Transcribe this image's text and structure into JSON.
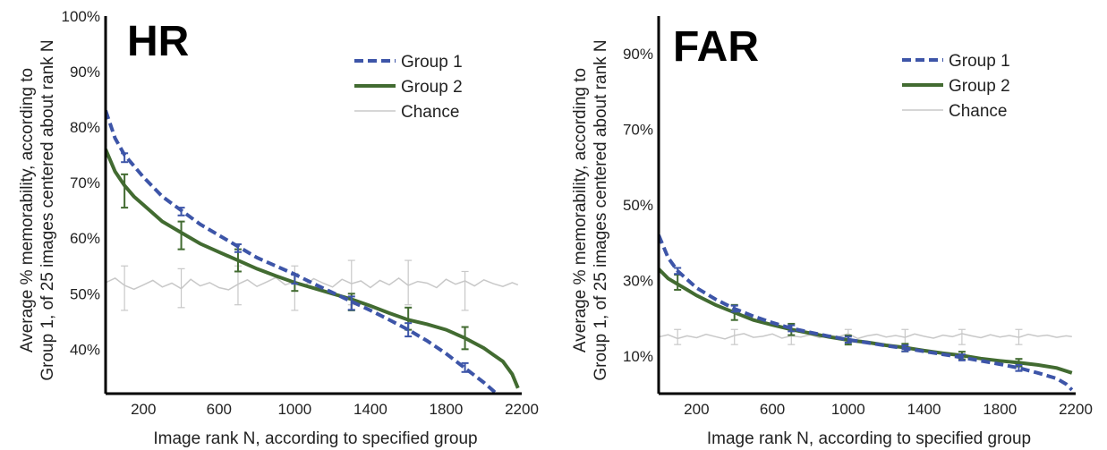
{
  "chart_data": [
    {
      "type": "line",
      "title": "HR",
      "xlabel": "Image rank N, according to specified group",
      "ylabel_line1": "Average % memorability, according to",
      "ylabel_line2": "Group 1, of 25 images centered about rank N",
      "xlim": [
        0,
        2200
      ],
      "ylim": [
        32,
        100
      ],
      "x_ticks": [
        200,
        600,
        1000,
        1400,
        1800,
        2200
      ],
      "x_tick_labels": [
        "200",
        "600",
        "1000",
        "1400",
        "1800",
        "2200"
      ],
      "y_ticks": [
        40,
        50,
        60,
        70,
        80,
        90,
        100
      ],
      "y_tick_labels": [
        "40%",
        "50%",
        "60%",
        "70%",
        "80%",
        "90%",
        "100%"
      ],
      "legend_position": "top-right",
      "series": [
        {
          "name": "Group 1",
          "style": "dashed",
          "color": "#3d55a8",
          "x": [
            0,
            50,
            100,
            200,
            300,
            400,
            500,
            600,
            700,
            800,
            900,
            1000,
            1100,
            1200,
            1300,
            1400,
            1500,
            1600,
            1700,
            1800,
            1900,
            2000,
            2050,
            2080
          ],
          "y": [
            83,
            78,
            75,
            71,
            67.5,
            65,
            62.5,
            60.5,
            58.5,
            56.5,
            55,
            53.5,
            51.8,
            50.2,
            48.6,
            47,
            45.3,
            43.5,
            41.5,
            39.2,
            36.6,
            34,
            32.5,
            31.5
          ],
          "error_bars": [
            {
              "x": 100,
              "y": 74.5,
              "err": 0.8
            },
            {
              "x": 400,
              "y": 64.8,
              "err": 0.7
            },
            {
              "x": 700,
              "y": 58.2,
              "err": 0.7
            },
            {
              "x": 1000,
              "y": 52.6,
              "err": 0.8
            },
            {
              "x": 1300,
              "y": 48.3,
              "err": 1.2
            },
            {
              "x": 1600,
              "y": 43.5,
              "err": 1.2
            },
            {
              "x": 1900,
              "y": 36.7,
              "err": 0.8
            }
          ]
        },
        {
          "name": "Group 2",
          "style": "solid",
          "color": "#426b31",
          "x": [
            0,
            50,
            100,
            150,
            200,
            300,
            400,
            500,
            600,
            700,
            800,
            900,
            1000,
            1100,
            1200,
            1300,
            1400,
            1500,
            1600,
            1700,
            1800,
            1900,
            2000,
            2050,
            2100,
            2150,
            2180
          ],
          "y": [
            76,
            72,
            69.5,
            67.5,
            66,
            63,
            61,
            59,
            57.5,
            56,
            54.5,
            53.2,
            52,
            51,
            50,
            49,
            47.8,
            46.5,
            45.3,
            44.5,
            43.5,
            42,
            40.2,
            39,
            37.8,
            35.5,
            33
          ],
          "error_bars": [
            {
              "x": 100,
              "y": 68.5,
              "err": 3
            },
            {
              "x": 400,
              "y": 60.5,
              "err": 2.5
            },
            {
              "x": 700,
              "y": 56,
              "err": 2
            },
            {
              "x": 1000,
              "y": 52,
              "err": 1.5
            },
            {
              "x": 1300,
              "y": 48.5,
              "err": 1.5
            },
            {
              "x": 1600,
              "y": 45.5,
              "err": 2
            },
            {
              "x": 1900,
              "y": 42,
              "err": 2
            }
          ]
        },
        {
          "name": "Chance",
          "style": "thin",
          "color": "#c8c8c8",
          "x": [
            0,
            50,
            100,
            150,
            200,
            250,
            300,
            350,
            400,
            450,
            500,
            550,
            600,
            650,
            700,
            750,
            800,
            850,
            900,
            950,
            1000,
            1050,
            1100,
            1150,
            1200,
            1250,
            1300,
            1350,
            1400,
            1450,
            1500,
            1550,
            1600,
            1650,
            1700,
            1750,
            1800,
            1850,
            1900,
            1950,
            2000,
            2050,
            2100,
            2150,
            2180
          ],
          "y": [
            52,
            52.8,
            51.5,
            50.8,
            51.6,
            52.4,
            51.2,
            51.9,
            50.9,
            52.6,
            51.4,
            52,
            51.1,
            50.7,
            51.7,
            52.5,
            51.3,
            52.1,
            52.9,
            51.6,
            52.2,
            51.4,
            52.7,
            51.9,
            51.2,
            52.6,
            51.8,
            52.3,
            51.1,
            52.4,
            51.6,
            52.8,
            51.5,
            52.2,
            51.9,
            51.1,
            52.6,
            51.7,
            52.3,
            51.4,
            52.5,
            51.8,
            51.3,
            52,
            51.6
          ],
          "error_bars": [
            {
              "x": 100,
              "y": 51,
              "err": 4
            },
            {
              "x": 400,
              "y": 51,
              "err": 3.5
            },
            {
              "x": 700,
              "y": 51.5,
              "err": 3.5
            },
            {
              "x": 1000,
              "y": 51,
              "err": 4
            },
            {
              "x": 1300,
              "y": 52,
              "err": 4
            },
            {
              "x": 1600,
              "y": 52,
              "err": 4
            },
            {
              "x": 1900,
              "y": 50.5,
              "err": 3.5
            }
          ]
        }
      ]
    },
    {
      "type": "line",
      "title": "FAR",
      "xlabel": "Image rank N, according to specified group",
      "ylabel_line1": "Average % memorability, according to",
      "ylabel_line2": "Group 1, of 25 images centered about rank N",
      "xlim": [
        0,
        2200
      ],
      "ylim": [
        0,
        100
      ],
      "x_ticks": [
        200,
        600,
        1000,
        1400,
        1800,
        2200
      ],
      "x_tick_labels": [
        "200",
        "600",
        "1000",
        "1400",
        "1800",
        "2200"
      ],
      "y_ticks": [
        10,
        30,
        50,
        70,
        90
      ],
      "y_tick_labels": [
        "10%",
        "30%",
        "50%",
        "70%",
        "90%"
      ],
      "legend_position": "top-right",
      "series": [
        {
          "name": "Group 1",
          "style": "dashed",
          "color": "#3d55a8",
          "x": [
            0,
            50,
            100,
            200,
            300,
            400,
            500,
            600,
            700,
            800,
            900,
            1000,
            1100,
            1200,
            1300,
            1400,
            1500,
            1600,
            1700,
            1800,
            1900,
            2000,
            2100,
            2150,
            2180
          ],
          "y": [
            42,
            36,
            32.5,
            28,
            25,
            22.5,
            20.5,
            18.8,
            17.3,
            16.2,
            15.2,
            14.3,
            13.5,
            12.7,
            12,
            11.2,
            10.4,
            9.6,
            8.7,
            7.8,
            6.8,
            5.5,
            4,
            2.5,
            1
          ],
          "error_bars": [
            {
              "x": 100,
              "y": 32.5,
              "err": 0.8
            },
            {
              "x": 400,
              "y": 22.5,
              "err": 0.8
            },
            {
              "x": 700,
              "y": 17.3,
              "err": 0.8
            },
            {
              "x": 1000,
              "y": 14.3,
              "err": 0.8
            },
            {
              "x": 1300,
              "y": 12,
              "err": 0.8
            },
            {
              "x": 1600,
              "y": 9.6,
              "err": 0.8
            },
            {
              "x": 1900,
              "y": 6.8,
              "err": 0.8
            }
          ]
        },
        {
          "name": "Group 2",
          "style": "solid",
          "color": "#426b31",
          "x": [
            0,
            50,
            100,
            150,
            200,
            300,
            400,
            500,
            600,
            700,
            800,
            900,
            1000,
            1100,
            1200,
            1300,
            1400,
            1500,
            1600,
            1700,
            1800,
            1900,
            2000,
            2100,
            2180
          ],
          "y": [
            33,
            30.5,
            29,
            27.5,
            26,
            23.5,
            21.5,
            19.5,
            18.2,
            17,
            16,
            15,
            14.2,
            13.6,
            12.8,
            12.2,
            11.4,
            10.7,
            10.1,
            9.3,
            8.7,
            8.2,
            7.6,
            6.8,
            5.5
          ],
          "error_bars": [
            {
              "x": 100,
              "y": 29.5,
              "err": 2
            },
            {
              "x": 400,
              "y": 21.5,
              "err": 2
            },
            {
              "x": 700,
              "y": 17,
              "err": 1.5
            },
            {
              "x": 1000,
              "y": 14.2,
              "err": 1.2
            },
            {
              "x": 1300,
              "y": 12.2,
              "err": 1
            },
            {
              "x": 1600,
              "y": 10.1,
              "err": 1
            },
            {
              "x": 1900,
              "y": 8.2,
              "err": 1
            }
          ]
        },
        {
          "name": "Chance",
          "style": "thin",
          "color": "#c8c8c8",
          "x": [
            0,
            50,
            100,
            150,
            200,
            250,
            300,
            350,
            400,
            450,
            500,
            550,
            600,
            650,
            700,
            750,
            800,
            850,
            900,
            950,
            1000,
            1050,
            1100,
            1150,
            1200,
            1250,
            1300,
            1350,
            1400,
            1450,
            1500,
            1550,
            1600,
            1650,
            1700,
            1750,
            1800,
            1850,
            1900,
            1950,
            2000,
            2050,
            2100,
            2150,
            2180
          ],
          "y": [
            15,
            15.6,
            14.6,
            15.3,
            14.8,
            15.7,
            15.1,
            14.5,
            15.4,
            15.9,
            14.9,
            15.2,
            15.8,
            14.7,
            15.3,
            15,
            15.6,
            14.8,
            15.5,
            15.1,
            15.9,
            14.6,
            15.3,
            15.7,
            15,
            15.4,
            14.9,
            15.8,
            15.2,
            14.7,
            15.5,
            15.1,
            15.9,
            15.3,
            14.8,
            15.6,
            15,
            15.4,
            14.9,
            15.7,
            15.2,
            15.5,
            14.9,
            15.3,
            15.1
          ],
          "error_bars": [
            {
              "x": 100,
              "y": 15,
              "err": 2
            },
            {
              "x": 400,
              "y": 15,
              "err": 2
            },
            {
              "x": 700,
              "y": 15,
              "err": 2
            },
            {
              "x": 1000,
              "y": 15,
              "err": 2
            },
            {
              "x": 1300,
              "y": 15,
              "err": 2
            },
            {
              "x": 1600,
              "y": 15,
              "err": 2
            },
            {
              "x": 1900,
              "y": 15,
              "err": 2
            }
          ]
        }
      ]
    }
  ]
}
